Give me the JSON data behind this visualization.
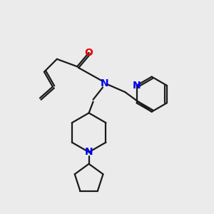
{
  "bg_color": "#ebebeb",
  "bond_color": "#1a1a1a",
  "N_color": "#0000ee",
  "O_color": "#ee0000",
  "lw": 1.6,
  "figsize": [
    3.0,
    3.0
  ],
  "dpi": 100,
  "xlim": [
    0,
    10
  ],
  "ylim": [
    0,
    10
  ]
}
